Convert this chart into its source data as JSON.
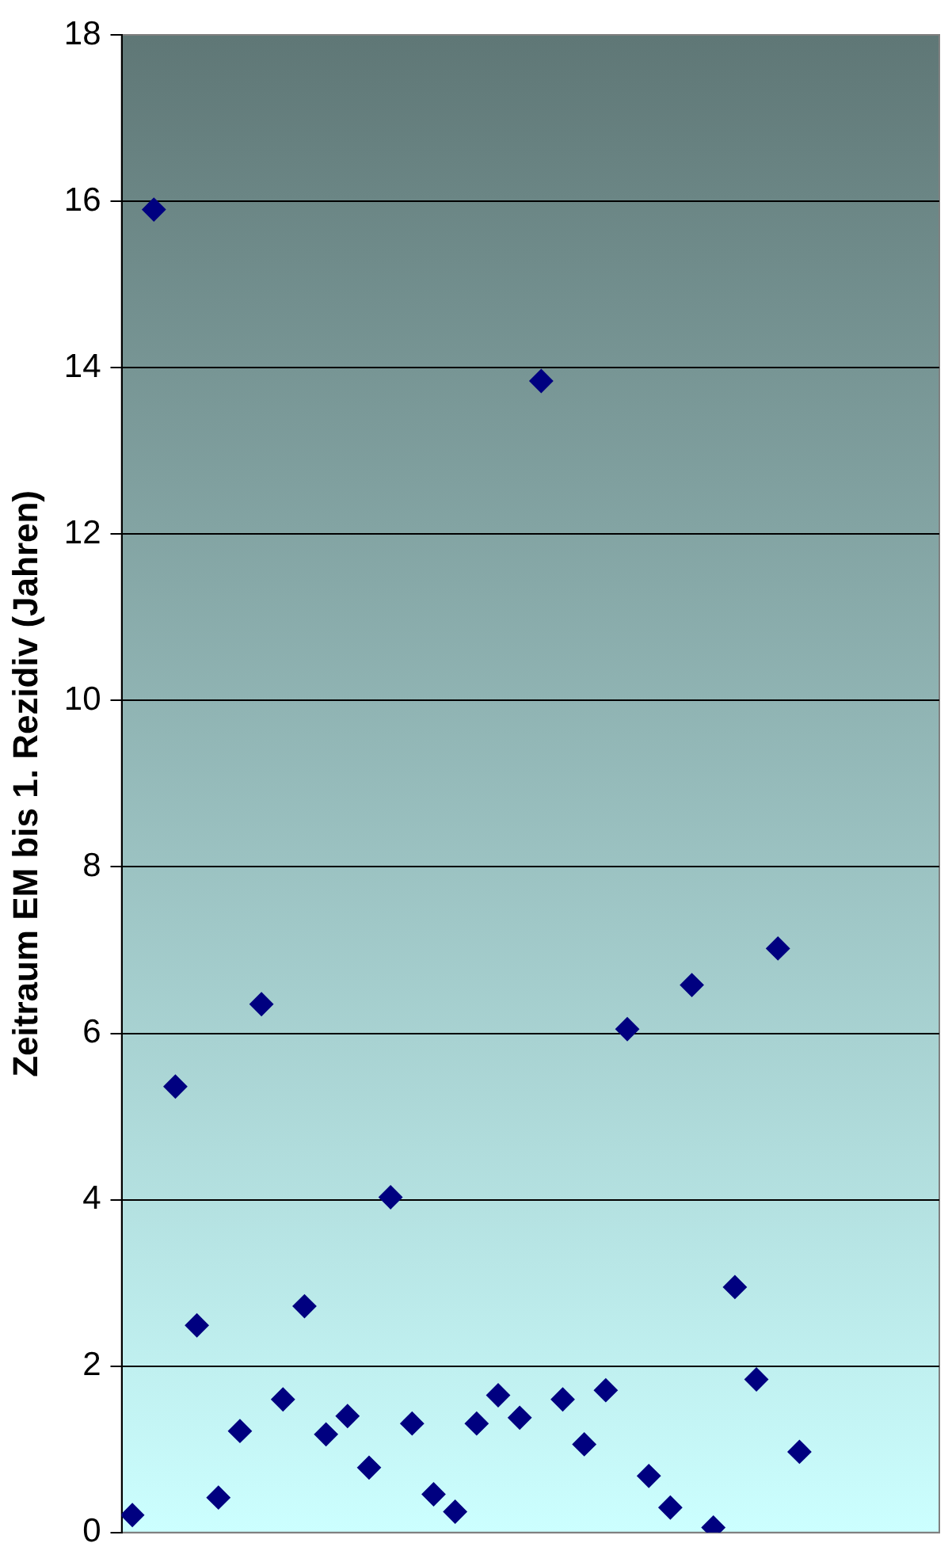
{
  "chart_data": {
    "type": "scatter",
    "ylabel": "Zeitraum EM bis 1. Rezidiv (Jahren)",
    "categories": [
      null,
      null,
      null,
      null,
      null,
      null,
      null,
      null,
      null,
      null,
      null,
      null,
      null,
      null,
      null,
      null,
      null,
      null,
      null,
      null,
      null,
      null,
      null,
      null,
      null,
      null,
      null,
      null,
      null,
      null,
      null,
      null,
      null,
      null,
      null,
      null,
      null,
      null
    ],
    "series": [
      {
        "color": "#000080",
        "values": [
          0.21,
          15.9,
          5.36,
          2.49,
          0.42,
          1.22,
          6.35,
          1.6,
          2.72,
          1.18,
          1.4,
          0.78,
          4.03,
          1.31,
          0.46,
          0.25,
          1.31,
          1.65,
          1.38,
          13.84,
          1.6,
          1.06,
          1.71,
          6.05,
          0.68,
          0.3,
          6.58,
          0.06,
          2.95,
          1.84,
          7.02,
          0.97,
          null,
          null,
          null,
          null,
          null,
          null
        ]
      }
    ],
    "ylim": [
      0,
      18
    ],
    "yticks": [
      0,
      2,
      4,
      6,
      8,
      10,
      12,
      14,
      16,
      18
    ],
    "grid": "y",
    "tick_labels": "y",
    "marker": "diamond",
    "legend": false
  }
}
